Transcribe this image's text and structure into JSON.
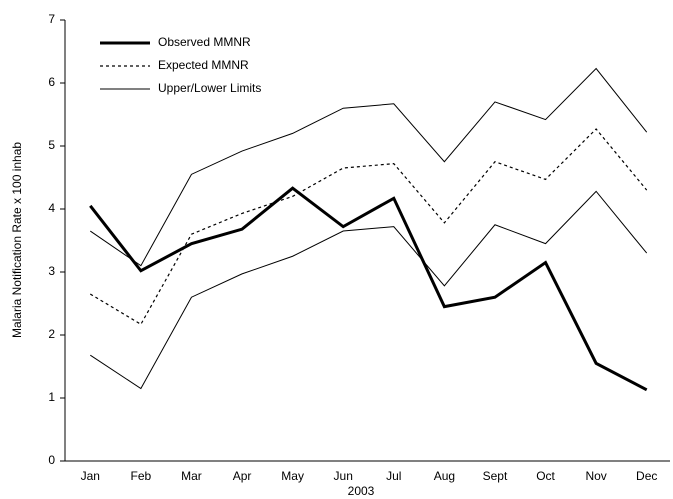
{
  "chart_data": {
    "type": "line",
    "x_label": "2003",
    "y_label": "Malaria Notification Rate x 100 inhab",
    "categories": [
      "Jan",
      "Feb",
      "Mar",
      "Apr",
      "May",
      "Jun",
      "Jul",
      "Aug",
      "Sept",
      "Oct",
      "Nov",
      "Dec"
    ],
    "series": [
      {
        "name": "Observed MMNR",
        "color": "#000000",
        "style": "solid",
        "width": 3,
        "values": [
          4.05,
          3.02,
          3.45,
          3.68,
          4.33,
          3.72,
          4.17,
          2.45,
          2.6,
          3.15,
          1.55,
          1.13
        ]
      },
      {
        "name": "Expected MMNR",
        "color": "#000000",
        "style": "dotted",
        "width": 1.2,
        "values": [
          2.65,
          2.17,
          3.6,
          3.93,
          4.2,
          4.65,
          4.72,
          3.78,
          4.75,
          4.47,
          5.27,
          4.3
        ]
      },
      {
        "name": "Upper/Lower Limits",
        "color": "#000000",
        "style": "solid",
        "width": 1,
        "values": [
          3.65,
          3.1,
          4.55,
          4.92,
          5.2,
          5.6,
          5.67,
          4.75,
          5.7,
          5.42,
          6.23,
          5.22
        ]
      },
      {
        "color": "#000000",
        "style": "solid",
        "width": 1,
        "values": [
          1.68,
          1.15,
          2.6,
          2.97,
          3.25,
          3.65,
          3.72,
          2.78,
          3.75,
          3.45,
          4.28,
          3.3
        ]
      }
    ],
    "ylim": [
      0,
      7
    ],
    "yticks": [
      0,
      1,
      2,
      3,
      4,
      5,
      6,
      7
    ],
    "legend": "upper-left",
    "grid": false
  }
}
